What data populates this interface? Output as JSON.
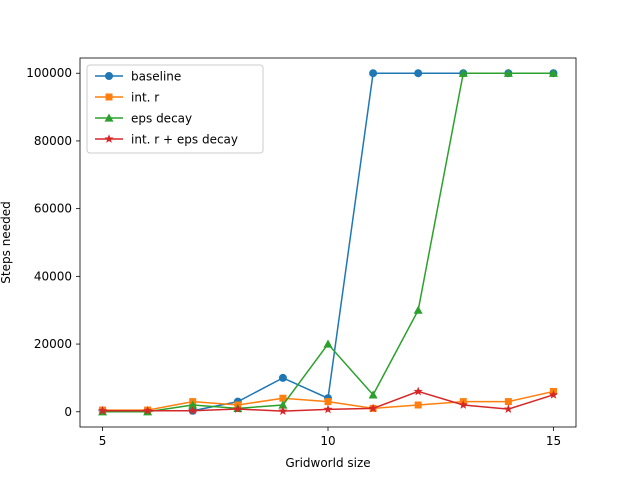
{
  "chart_data": {
    "type": "line",
    "title": "",
    "xlabel": "Gridworld size",
    "ylabel": "Steps needed",
    "x": [
      5,
      6,
      7,
      8,
      9,
      10,
      11,
      12,
      13,
      14,
      15
    ],
    "xlim": [
      4.5,
      15.5
    ],
    "ylim": [
      -4500,
      104500
    ],
    "xticks": [
      5,
      10,
      15
    ],
    "yticks": [
      0,
      20000,
      40000,
      60000,
      80000,
      100000
    ],
    "grid": false,
    "legend_position": "top-left",
    "series": [
      {
        "name": "baseline",
        "color": "#1f77b4",
        "marker": "circle",
        "values": [
          400,
          300,
          300,
          3000,
          10000,
          4000,
          100000,
          100000,
          100000,
          100000,
          100000
        ]
      },
      {
        "name": "int. r",
        "color": "#ff7f0e",
        "marker": "square",
        "values": [
          500,
          500,
          3000,
          2000,
          4000,
          3000,
          1000,
          2000,
          3000,
          3000,
          6000
        ]
      },
      {
        "name": "eps decay",
        "color": "#2ca02c",
        "marker": "triangle",
        "values": [
          0,
          0,
          2000,
          1000,
          2000,
          20000,
          5000,
          30000,
          100000,
          100000,
          100000
        ]
      },
      {
        "name": "int. r + eps decay",
        "color": "#d62728",
        "marker": "star",
        "values": [
          300,
          300,
          300,
          800,
          200,
          700,
          1000,
          6000,
          2000,
          800,
          5000
        ]
      }
    ]
  }
}
